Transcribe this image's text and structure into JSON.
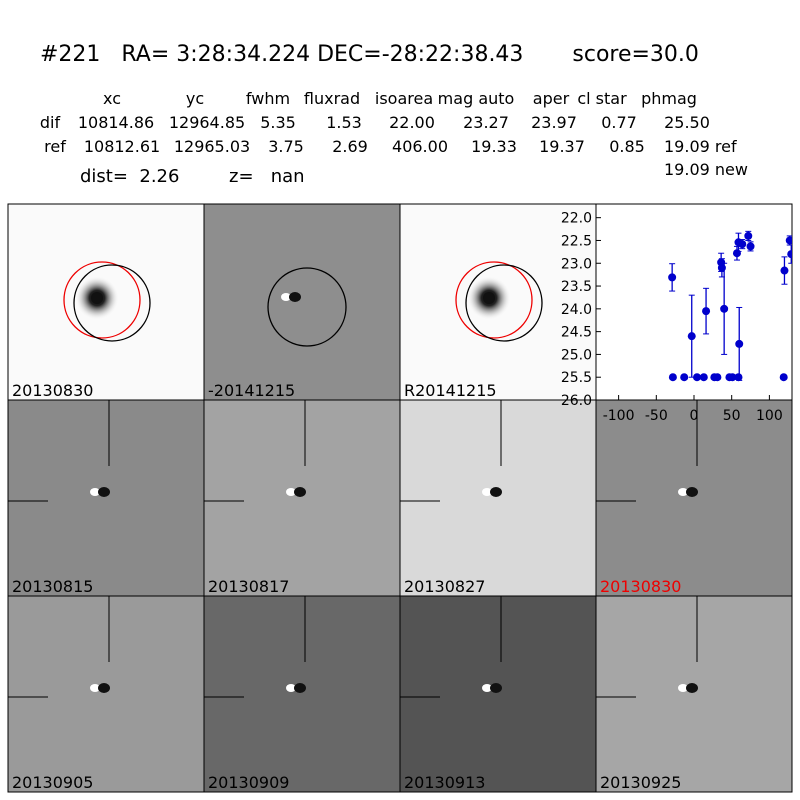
{
  "header": {
    "title": "#221   RA= 3:28:34.224 DEC=-28:22:38.43       score=30.0"
  },
  "table": {
    "columns": [
      "xc",
      "yc",
      "fwhm",
      "fluxrad",
      "isoarea",
      "mag auto",
      "aper",
      "cl star",
      "phmag"
    ],
    "rows": [
      [
        "dif",
        "10814.86",
        "12964.85",
        "5.35",
        "1.53",
        "22.00",
        "23.27",
        "23.97",
        "0.77",
        "25.50"
      ],
      [
        "ref",
        "10812.61",
        "12965.03",
        "3.75",
        "2.69",
        "406.00",
        "19.33",
        "19.37",
        "0.85",
        "19.09 ref"
      ]
    ],
    "new": "19.09 new"
  },
  "dist": "dist=  2.26",
  "z": "z=   nan",
  "panels": [
    "20130830",
    "-20141215",
    "R20141215",
    "20130815",
    "20130817",
    "20130827",
    "20130830",
    "20130905",
    "20130909",
    "20130913",
    "20130925"
  ],
  "chart_data": {
    "type": "scatter",
    "x": [
      -29,
      -28,
      -13,
      -3,
      4,
      13,
      16,
      27,
      31,
      36,
      37,
      40,
      47,
      51,
      57,
      59,
      60,
      59,
      64,
      72,
      75,
      120,
      127,
      129,
      119
    ],
    "values": [
      23.31,
      25.5,
      25.5,
      24.6,
      25.5,
      25.5,
      24.05,
      25.5,
      25.5,
      22.98,
      23.1,
      24.0,
      25.5,
      25.5,
      22.78,
      22.54,
      24.77,
      25.5,
      22.58,
      22.4,
      22.63,
      23.16,
      22.5,
      22.8,
      25.5
    ],
    "errors": [
      0.3,
      0,
      0,
      0.9,
      0,
      0,
      0.5,
      0,
      0,
      0.2,
      0.2,
      1.0,
      0,
      0,
      0.15,
      0.2,
      0.8,
      0,
      0.1,
      0.1,
      0.1,
      0.3,
      0.1,
      0.2,
      0
    ],
    "color": "#0000cc",
    "xlim": [
      -130,
      130
    ],
    "xticks": [
      -100,
      -50,
      0,
      50,
      100
    ],
    "ylim": [
      26.0,
      21.7
    ],
    "yticks": [
      {
        "value": 22.0,
        "label": "22.0"
      },
      {
        "value": 22.5,
        "label": "22.5"
      },
      {
        "value": 23.0,
        "label": "23.0"
      },
      {
        "value": 23.5,
        "label": "23.5"
      },
      {
        "value": 24.0,
        "label": "24.0"
      },
      {
        "value": 24.5,
        "label": "24.5"
      },
      {
        "value": 25.0,
        "label": "25.0"
      },
      {
        "value": 25.5,
        "label": "25.5"
      },
      {
        "value": 26.0,
        "label": "26.0"
      }
    ]
  }
}
